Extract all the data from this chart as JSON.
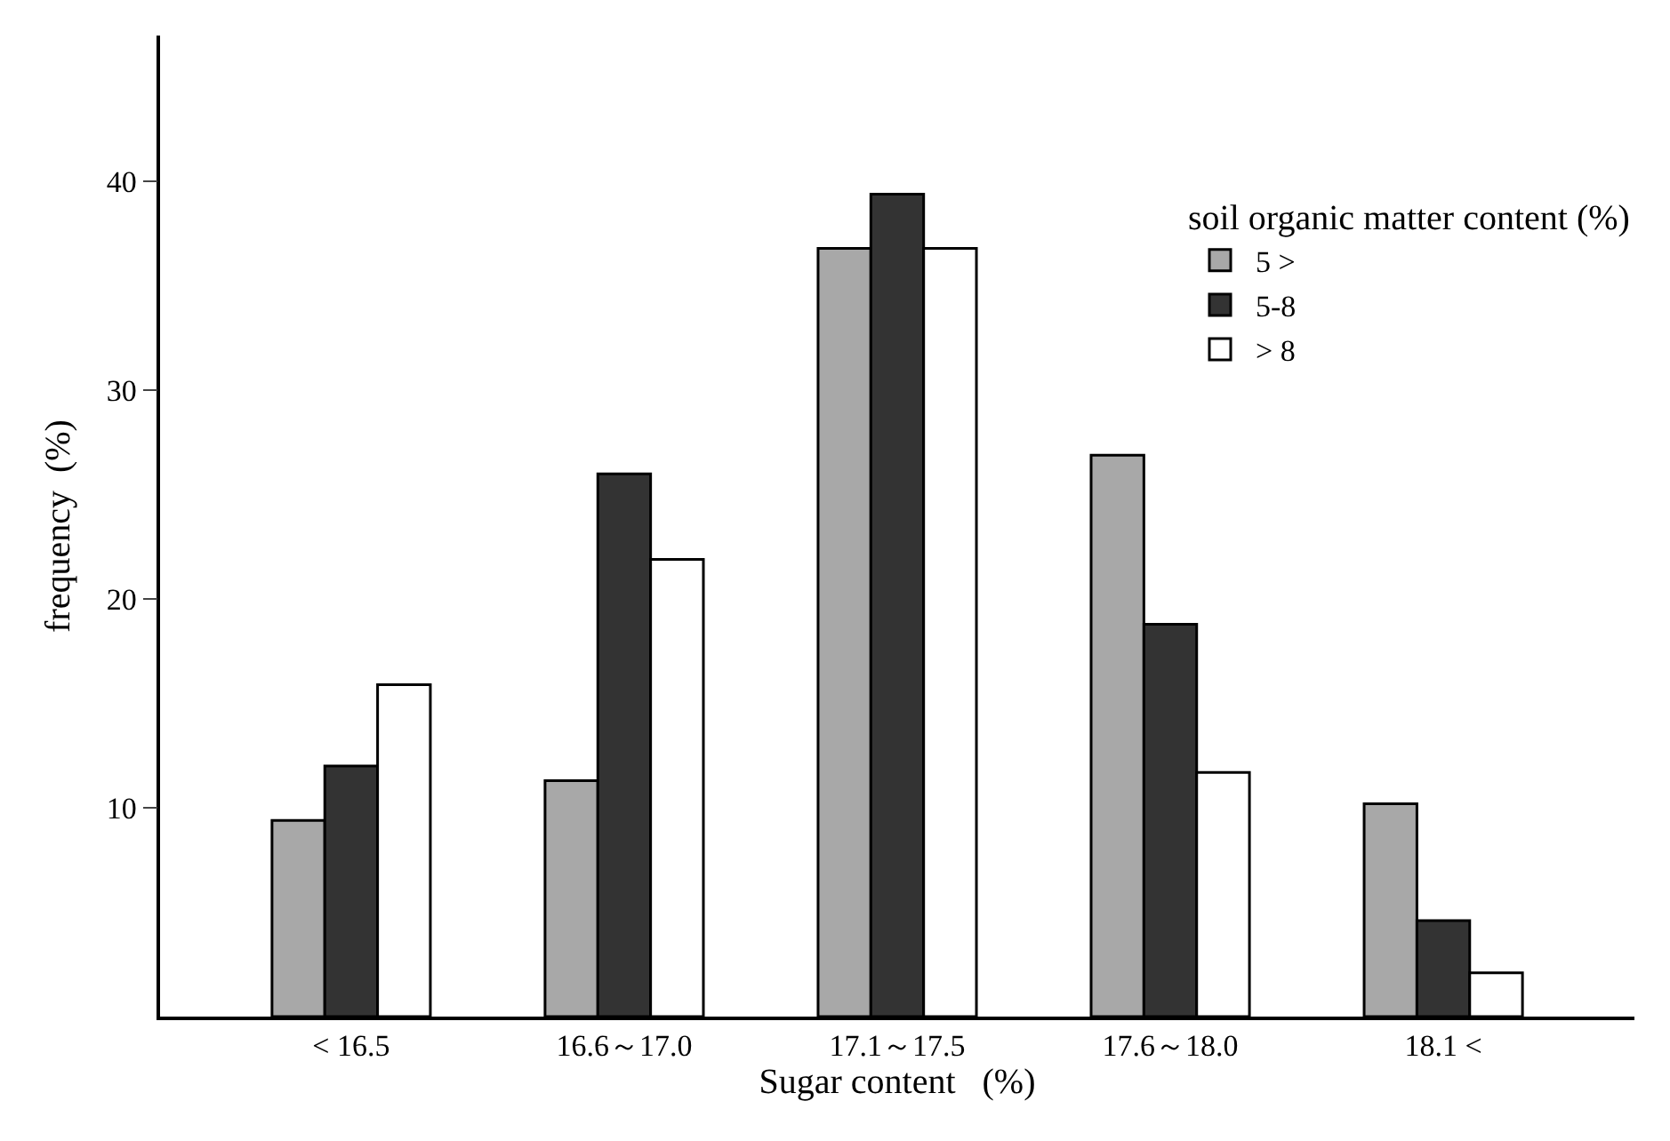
{
  "chart_data": {
    "type": "bar",
    "xlabel": "Sugar content   (%)",
    "ylabel": "frequency  (%)",
    "legend_title": "soil organic matter content (%)",
    "categories": [
      "< 16.5",
      "16.6～17.0",
      "17.1～17.5",
      "17.6～18.0",
      "18.1 <"
    ],
    "series": [
      {
        "name": "5 >",
        "color": "#a8a8a8",
        "values": [
          9.4,
          11.3,
          36.8,
          26.9,
          10.2
        ]
      },
      {
        "name": "5-8",
        "color": "#333333",
        "values": [
          12.0,
          26.0,
          39.4,
          18.8,
          4.6
        ]
      },
      {
        "name": "> 8",
        "color": "#ffffff",
        "values": [
          15.9,
          21.9,
          36.8,
          11.7,
          2.1
        ]
      }
    ],
    "ylim": [
      0,
      47
    ],
    "yticks": [
      10,
      20,
      30,
      40
    ],
    "legend": "top right"
  }
}
